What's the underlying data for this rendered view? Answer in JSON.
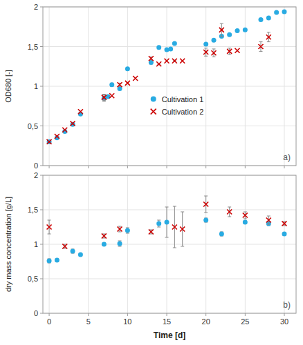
{
  "chart_data": [
    {
      "type": "scatter",
      "y_label": "OD680 [-]",
      "annotations": [
        "a)"
      ],
      "series": [
        {
          "name": "Cultivation 1",
          "color": "#29ABE2",
          "marker": "circle",
          "x": [
            0,
            1,
            2,
            3,
            4,
            7,
            7.5,
            8,
            9,
            10,
            13,
            14,
            15,
            15.5,
            16,
            20,
            21,
            22,
            23,
            24,
            25,
            27,
            28,
            29,
            30
          ],
          "values": [
            0.3,
            0.35,
            0.43,
            0.52,
            0.65,
            0.85,
            0.87,
            1.02,
            0.97,
            1.22,
            1.3,
            1.49,
            1.46,
            1.47,
            1.54,
            1.53,
            1.58,
            1.63,
            1.65,
            1.7,
            1.71,
            1.84,
            1.86,
            1.93,
            1.94
          ],
          "errors": [
            0,
            0,
            0,
            0,
            0,
            0.04,
            0,
            0.02,
            0.01,
            0,
            0.02,
            0.01,
            0.01,
            0,
            0,
            0,
            0,
            0,
            0,
            0,
            0,
            0,
            0,
            0,
            0
          ]
        },
        {
          "name": "Cultivation 2",
          "color": "#CC0000",
          "marker": "x",
          "x": [
            0,
            1,
            2,
            3,
            4,
            7,
            8,
            9,
            10,
            11,
            13,
            14,
            15,
            16,
            17,
            20,
            21,
            22,
            23,
            24,
            27,
            28
          ],
          "values": [
            0.3,
            0.37,
            0.45,
            0.53,
            0.68,
            0.86,
            0.88,
            1.02,
            1.04,
            1.1,
            1.35,
            1.28,
            1.32,
            1.32,
            1.32,
            1.43,
            1.42,
            1.71,
            1.44,
            1.45,
            1.5,
            1.62
          ],
          "errors": [
            0,
            0,
            0,
            0,
            0,
            0.04,
            0,
            0.02,
            0,
            0,
            0.02,
            0.01,
            0,
            0.01,
            0,
            0.05,
            0.05,
            0.08,
            0.04,
            0,
            0.06,
            0.06
          ]
        }
      ],
      "xlim": [
        -0.8,
        31.5
      ],
      "xticks": [
        0,
        5,
        10,
        15,
        20,
        25,
        30
      ],
      "ylim": [
        0,
        2
      ],
      "yticks": [
        0,
        {
          "value": 0.5,
          "label": "0,5"
        },
        1,
        {
          "value": 1.5,
          "label": "1,5"
        },
        2
      ],
      "grid": true,
      "legend": "center",
      "tick_labels": "y"
    },
    {
      "type": "scatter",
      "x_label": "Time [d]",
      "y_label": "dry mass concentration [g/L]",
      "annotations": [
        "b)"
      ],
      "series": [
        {
          "color": "#29ABE2",
          "marker": "circle",
          "x": [
            0,
            1,
            3,
            4,
            7,
            9,
            10,
            14,
            15,
            20,
            22,
            25,
            28,
            30
          ],
          "values": [
            0.76,
            0.77,
            0.9,
            0.85,
            1.0,
            1.01,
            1.2,
            1.3,
            1.32,
            1.35,
            1.15,
            1.32,
            1.3,
            1.15
          ],
          "errors": [
            0.03,
            0.02,
            0.03,
            0.02,
            0.02,
            0.04,
            0.04,
            0.05,
            0.22,
            0.03,
            0.03,
            0.02,
            0.03,
            0.02
          ]
        },
        {
          "color": "#CC0000",
          "marker": "x",
          "x": [
            0,
            2,
            7,
            9,
            13,
            16,
            17,
            20,
            23,
            25,
            28,
            30
          ],
          "values": [
            1.25,
            0.97,
            1.12,
            1.22,
            1.18,
            1.25,
            1.22,
            1.58,
            1.47,
            1.42,
            1.35,
            1.3
          ],
          "errors": [
            0.1,
            0.03,
            0.03,
            0.04,
            0.03,
            0.3,
            0.25,
            0.12,
            0.07,
            0.05,
            0.06,
            0.03
          ]
        }
      ],
      "xlim": [
        -0.8,
        31.5
      ],
      "xticks": [
        0,
        5,
        10,
        15,
        20,
        25,
        30
      ],
      "ylim": [
        0,
        2
      ],
      "yticks": [
        0,
        {
          "value": 0.5,
          "label": "0,5"
        },
        1,
        {
          "value": 1.5,
          "label": "1,5"
        },
        2
      ],
      "grid": true
    }
  ]
}
